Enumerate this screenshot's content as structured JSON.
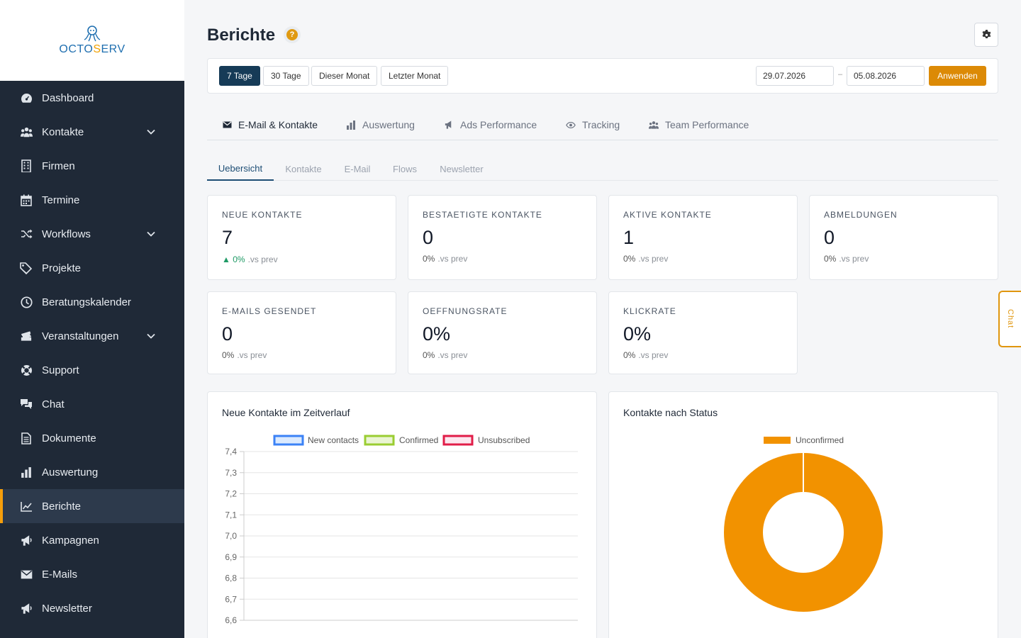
{
  "brand": {
    "name_part1": "OCTO",
    "name_part2": "S",
    "name_part3": "ERV"
  },
  "sidebar": {
    "items": [
      {
        "label": "Dashboard",
        "icon": "dashboard-icon"
      },
      {
        "label": "Kontakte",
        "icon": "users-icon",
        "expandable": true
      },
      {
        "label": "Firmen",
        "icon": "building-icon"
      },
      {
        "label": "Termine",
        "icon": "calendar-icon"
      },
      {
        "label": "Workflows",
        "icon": "shuffle-icon",
        "expandable": true
      },
      {
        "label": "Projekte",
        "icon": "tags-icon"
      },
      {
        "label": "Beratungskalender",
        "icon": "clock-icon"
      },
      {
        "label": "Veranstaltungen",
        "icon": "tickets-icon",
        "expandable": true
      },
      {
        "label": "Support",
        "icon": "lifebuoy-icon"
      },
      {
        "label": "Chat",
        "icon": "comments-icon"
      },
      {
        "label": "Dokumente",
        "icon": "document-icon"
      },
      {
        "label": "Auswertung",
        "icon": "bar-chart-icon"
      },
      {
        "label": "Berichte",
        "icon": "line-chart-icon",
        "active": true
      },
      {
        "label": "Kampagnen",
        "icon": "megaphone-icon"
      },
      {
        "label": "E-Mails",
        "icon": "envelope-icon"
      },
      {
        "label": "Newsletter",
        "icon": "megaphone-icon"
      }
    ]
  },
  "header": {
    "title": "Berichte",
    "help": "?"
  },
  "filters": {
    "ranges": [
      "7 Tage",
      "30 Tage",
      "Dieser Monat",
      "Letzter Monat"
    ],
    "active_range": "7 Tage",
    "date_from": "29.07.2026",
    "date_sep": "–",
    "date_to": "05.08.2026",
    "apply_label": "Anwenden"
  },
  "main_tabs": [
    {
      "label": "E-Mail & Kontakte",
      "icon": "envelope-icon",
      "active": true
    },
    {
      "label": "Auswertung",
      "icon": "bar-chart-icon"
    },
    {
      "label": "Ads Performance",
      "icon": "megaphone-icon"
    },
    {
      "label": "Tracking",
      "icon": "eye-icon"
    },
    {
      "label": "Team Performance",
      "icon": "users-icon"
    }
  ],
  "sub_tabs": [
    {
      "label": "Uebersicht",
      "active": true
    },
    {
      "label": "Kontakte"
    },
    {
      "label": "E-Mail"
    },
    {
      "label": "Flows"
    },
    {
      "label": "Newsletter"
    }
  ],
  "kpis": [
    {
      "label": "NEUE KONTAKTE",
      "value": "7",
      "delta": "0%",
      "vs": ".vs prev",
      "trend": "up"
    },
    {
      "label": "BESTAETIGTE KONTAKTE",
      "value": "0",
      "delta": "0%",
      "vs": ".vs prev"
    },
    {
      "label": "AKTIVE KONTAKTE",
      "value": "1",
      "delta": "0%",
      "vs": ".vs prev"
    },
    {
      "label": "ABMELDUNGEN",
      "value": "0",
      "delta": "0%",
      "vs": ".vs prev"
    },
    {
      "label": "E-MAILS GESENDET",
      "value": "0",
      "delta": "0%",
      "vs": ".vs prev"
    },
    {
      "label": "OEFFNUNGSRATE",
      "value": "0%",
      "delta": "0%",
      "vs": ".vs prev"
    },
    {
      "label": "KLICKRATE",
      "value": "0%",
      "delta": "0%",
      "vs": ".vs prev"
    }
  ],
  "chat_tab_label": "Chat",
  "colors": {
    "accent": "#dc8a06",
    "sidebar": "#1f2937",
    "active_tab": "#163b57",
    "donut": "#f29200"
  },
  "chart_data": [
    {
      "type": "line",
      "title": "Neue Kontakte im Zeitverlauf",
      "series": [
        {
          "name": "New contacts",
          "color": "#3b82f6",
          "fill": "#dbeafe",
          "values": []
        },
        {
          "name": "Confirmed",
          "color": "#9acd32",
          "fill": "#eaf5d3",
          "values": []
        },
        {
          "name": "Unsubscribed",
          "color": "#e11d48",
          "fill": "#fce7ef",
          "values": []
        }
      ],
      "yticks": [
        "7,4",
        "7,3",
        "7,2",
        "7,1",
        "7,0",
        "6,9",
        "6,8",
        "6,7",
        "6,6"
      ],
      "ylim": [
        6.6,
        7.4
      ],
      "legend": "top",
      "grid": true
    },
    {
      "type": "pie",
      "title": "Kontakte nach Status",
      "labels": [
        "Unconfirmed"
      ],
      "values": [
        1
      ],
      "colors": [
        "#f29200"
      ],
      "legend": "top"
    }
  ]
}
